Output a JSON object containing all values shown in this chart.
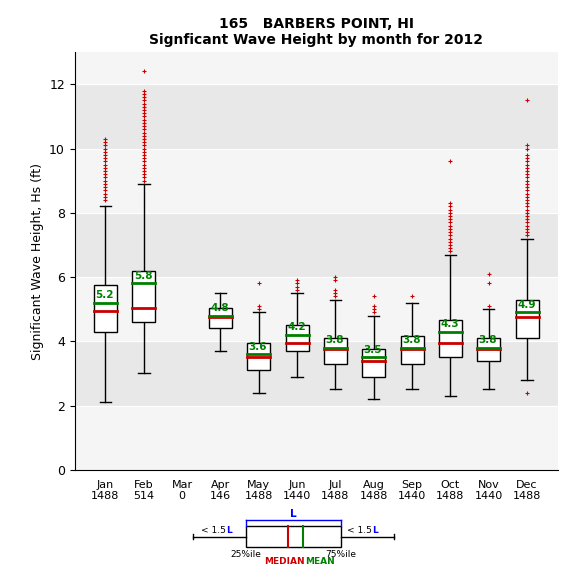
{
  "title_line1": "165   BARBERS POINT, HI",
  "title_line2": "Signficant Wave Height by month for 2012",
  "ylabel": "Significant Wave Height, Hs (ft)",
  "months": [
    "Jan",
    "Feb",
    "Mar",
    "Apr",
    "May",
    "Jun",
    "Jul",
    "Aug",
    "Sep",
    "Oct",
    "Nov",
    "Dec"
  ],
  "counts": [
    1488,
    514,
    0,
    146,
    1488,
    1440,
    1488,
    1488,
    1440,
    1488,
    1440,
    1488
  ],
  "ylim": [
    0,
    13
  ],
  "yticks": [
    0,
    2,
    4,
    6,
    8,
    10,
    12
  ],
  "boxes": [
    {
      "q1": 4.3,
      "median": 4.95,
      "q3": 5.75,
      "mean": 5.2,
      "whislo": 2.1,
      "whishi": 8.2,
      "fliers_above": [
        8.4,
        8.5,
        8.6,
        8.7,
        8.8,
        8.9,
        9.0,
        9.1,
        9.2,
        9.3,
        9.4,
        9.5,
        9.6,
        9.7,
        9.8,
        9.9,
        10.0,
        10.1,
        10.2,
        10.3
      ],
      "fliers_below": []
    },
    {
      "q1": 4.6,
      "median": 5.05,
      "q3": 6.2,
      "mean": 5.8,
      "whislo": 3.0,
      "whishi": 8.9,
      "fliers_above": [
        9.0,
        9.1,
        9.2,
        9.3,
        9.4,
        9.5,
        9.6,
        9.7,
        9.8,
        9.9,
        10.0,
        10.1,
        10.2,
        10.3,
        10.4,
        10.5,
        10.6,
        10.7,
        10.8,
        10.9,
        11.0,
        11.1,
        11.2,
        11.3,
        11.4,
        11.5,
        11.6,
        11.7,
        11.8,
        12.4
      ],
      "fliers_below": []
    },
    {
      "q1": null,
      "median": null,
      "q3": null,
      "mean": null,
      "whislo": null,
      "whishi": null,
      "fliers_above": [],
      "fliers_below": []
    },
    {
      "q1": 4.4,
      "median": 4.75,
      "q3": 5.05,
      "mean": 4.8,
      "whislo": 3.7,
      "whishi": 5.5,
      "fliers_above": [],
      "fliers_below": []
    },
    {
      "q1": 3.1,
      "median": 3.5,
      "q3": 3.95,
      "mean": 3.6,
      "whislo": 2.4,
      "whishi": 4.9,
      "fliers_above": [
        5.0,
        5.1,
        5.8
      ],
      "fliers_below": []
    },
    {
      "q1": 3.7,
      "median": 3.95,
      "q3": 4.5,
      "mean": 4.2,
      "whislo": 2.9,
      "whishi": 5.5,
      "fliers_above": [
        5.6,
        5.7,
        5.8,
        5.9
      ],
      "fliers_below": []
    },
    {
      "q1": 3.3,
      "median": 3.75,
      "q3": 4.1,
      "mean": 3.8,
      "whislo": 2.5,
      "whishi": 5.3,
      "fliers_above": [
        5.4,
        5.5,
        5.6,
        5.9,
        6.0
      ],
      "fliers_below": []
    },
    {
      "q1": 2.9,
      "median": 3.4,
      "q3": 3.75,
      "mean": 3.5,
      "whislo": 2.2,
      "whishi": 4.8,
      "fliers_above": [
        4.9,
        5.0,
        5.1,
        5.4
      ],
      "fliers_below": []
    },
    {
      "q1": 3.3,
      "median": 3.75,
      "q3": 4.15,
      "mean": 3.8,
      "whislo": 2.5,
      "whishi": 5.2,
      "fliers_above": [
        5.4
      ],
      "fliers_below": []
    },
    {
      "q1": 3.5,
      "median": 3.95,
      "q3": 4.65,
      "mean": 4.3,
      "whislo": 2.3,
      "whishi": 6.7,
      "fliers_above": [
        6.8,
        6.9,
        7.0,
        7.1,
        7.2,
        7.3,
        7.4,
        7.5,
        7.6,
        7.7,
        7.8,
        7.9,
        8.0,
        8.1,
        8.2,
        8.3,
        9.6
      ],
      "fliers_below": []
    },
    {
      "q1": 3.4,
      "median": 3.75,
      "q3": 4.1,
      "mean": 3.8,
      "whislo": 2.5,
      "whishi": 5.0,
      "fliers_above": [
        5.1,
        5.8,
        6.1
      ],
      "fliers_below": []
    },
    {
      "q1": 4.1,
      "median": 4.75,
      "q3": 5.3,
      "mean": 4.9,
      "whislo": 2.8,
      "whishi": 7.2,
      "fliers_above": [
        7.3,
        7.4,
        7.5,
        7.6,
        7.7,
        7.8,
        7.9,
        8.0,
        8.1,
        8.2,
        8.3,
        8.4,
        8.5,
        8.6,
        8.7,
        8.8,
        8.9,
        9.0,
        9.1,
        9.2,
        9.3,
        9.4,
        9.5,
        9.6,
        9.7,
        9.8,
        10.0,
        10.1,
        11.5
      ],
      "fliers_below": [
        2.4
      ]
    }
  ],
  "mean_color": "#008000",
  "median_color": "#cc0000",
  "flier_color": "#cc0000",
  "band_boundaries": [
    0,
    2,
    4,
    6,
    8,
    10,
    12,
    13
  ],
  "band_colors": [
    "#f5f5f5",
    "#e8e8e8",
    "#f5f5f5",
    "#e8e8e8",
    "#f5f5f5",
    "#e8e8e8",
    "#f5f5f5"
  ]
}
